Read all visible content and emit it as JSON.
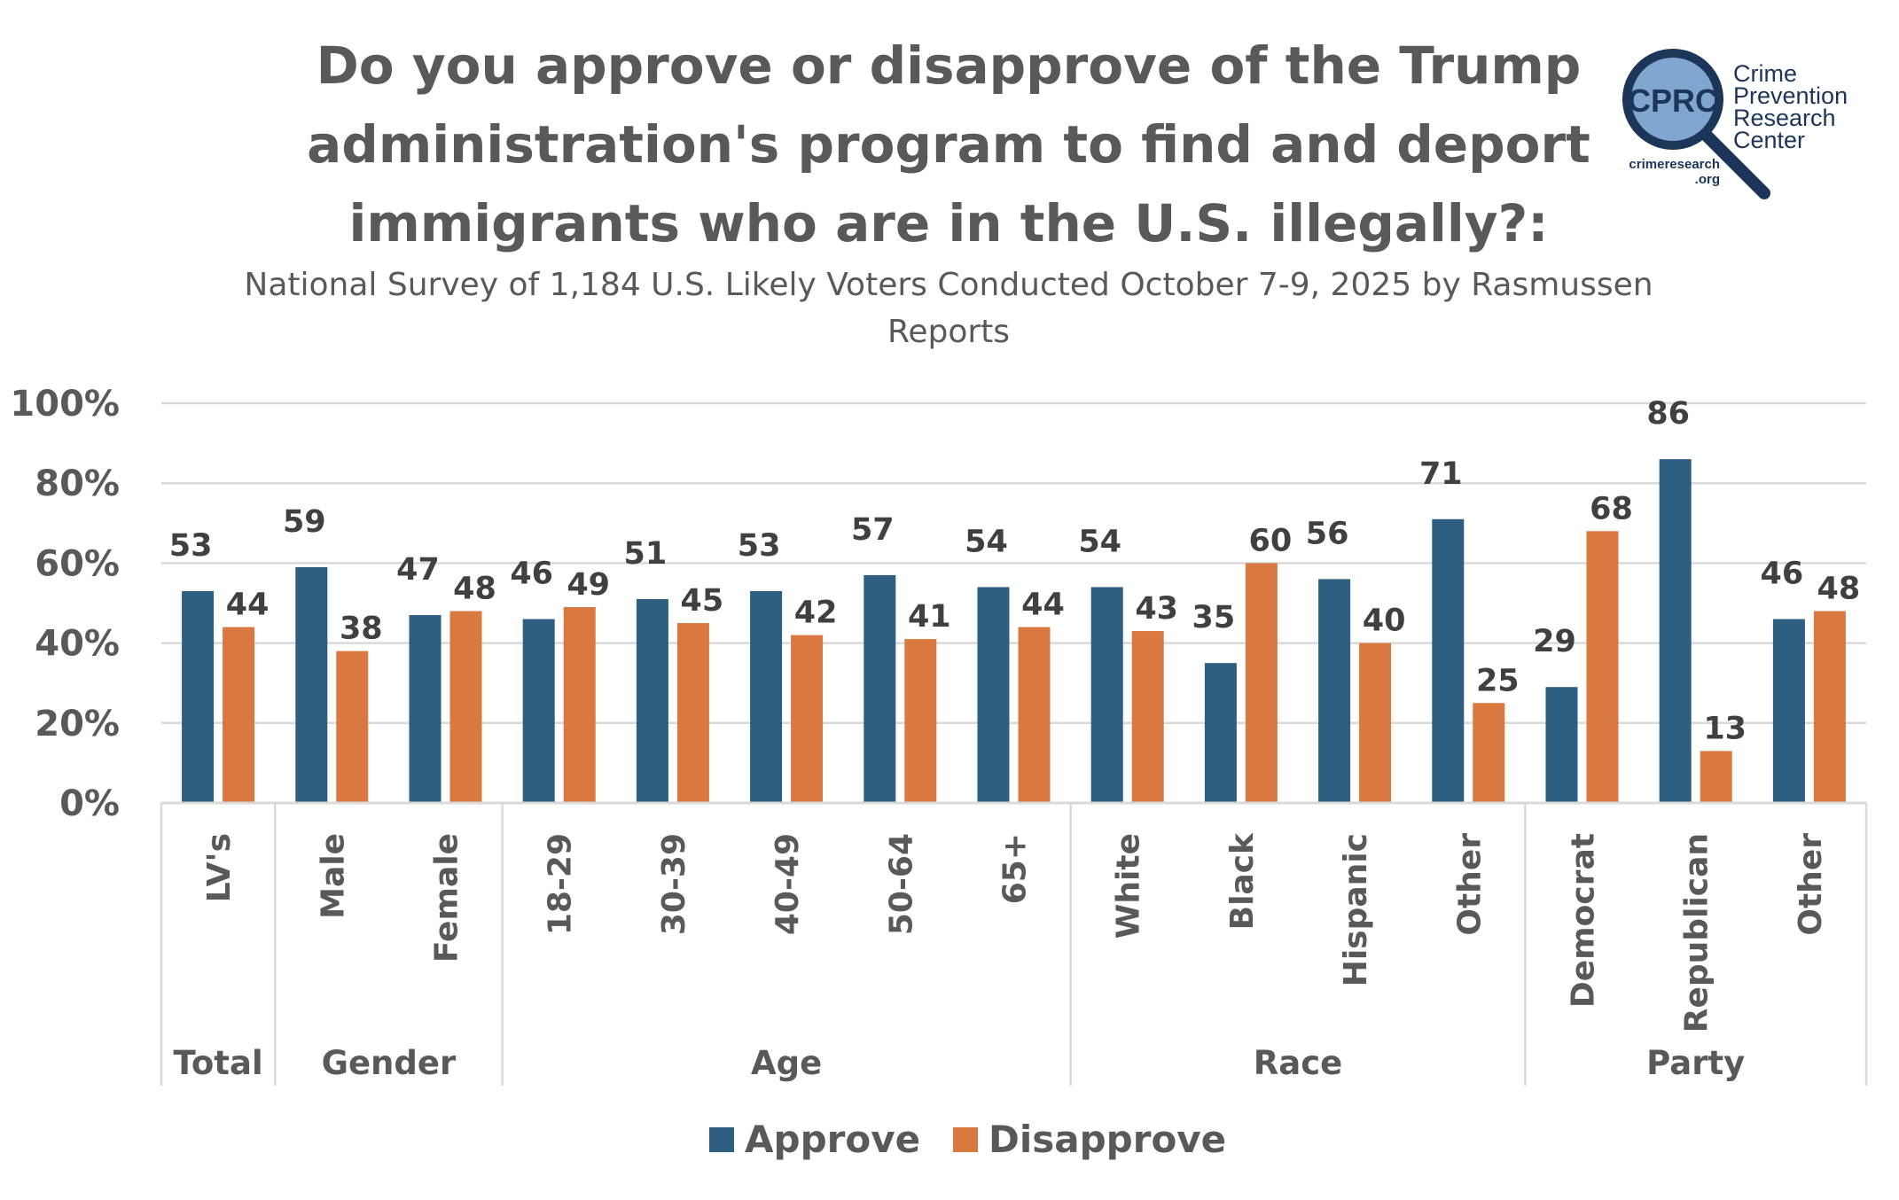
{
  "chart_data": {
    "type": "bar",
    "title": "Do you approve or disapprove of the Trump administration's program to find and deport immigrants who are in the U.S. illegally?:",
    "subtitle": "National Survey of 1,184 U.S. Likely Voters Conducted October 7-9, 2025 by Rasmussen Reports",
    "categories": [
      "LV's",
      "Male",
      "Female",
      "18-29",
      "30-39",
      "40-49",
      "50-64",
      "65+",
      "White",
      "Black",
      "Hispanic",
      "Other",
      "Democrat",
      "Republican",
      "Other"
    ],
    "groups": [
      {
        "label": "Total",
        "count": 1
      },
      {
        "label": "Gender",
        "count": 2
      },
      {
        "label": "Age",
        "count": 5
      },
      {
        "label": "Race",
        "count": 4
      },
      {
        "label": "Party",
        "count": 3
      }
    ],
    "series": [
      {
        "name": "Approve",
        "color": "#2E5F80",
        "values": [
          53,
          59,
          47,
          46,
          51,
          53,
          57,
          54,
          54,
          35,
          56,
          71,
          29,
          86,
          46
        ]
      },
      {
        "name": "Disapprove",
        "color": "#D97840",
        "values": [
          44,
          38,
          48,
          49,
          45,
          42,
          41,
          44,
          43,
          60,
          40,
          25,
          68,
          13,
          48
        ]
      }
    ],
    "yticks": [
      "0%",
      "20%",
      "40%",
      "60%",
      "80%",
      "100%"
    ],
    "ylim": [
      0,
      100
    ],
    "grid": true,
    "legend": "bottom"
  },
  "logo": {
    "initials": "CPRC",
    "name_lines": [
      "Crime",
      "Prevention",
      "Research",
      "Center"
    ],
    "url_lines": [
      "crimeresearch",
      ".org"
    ]
  }
}
